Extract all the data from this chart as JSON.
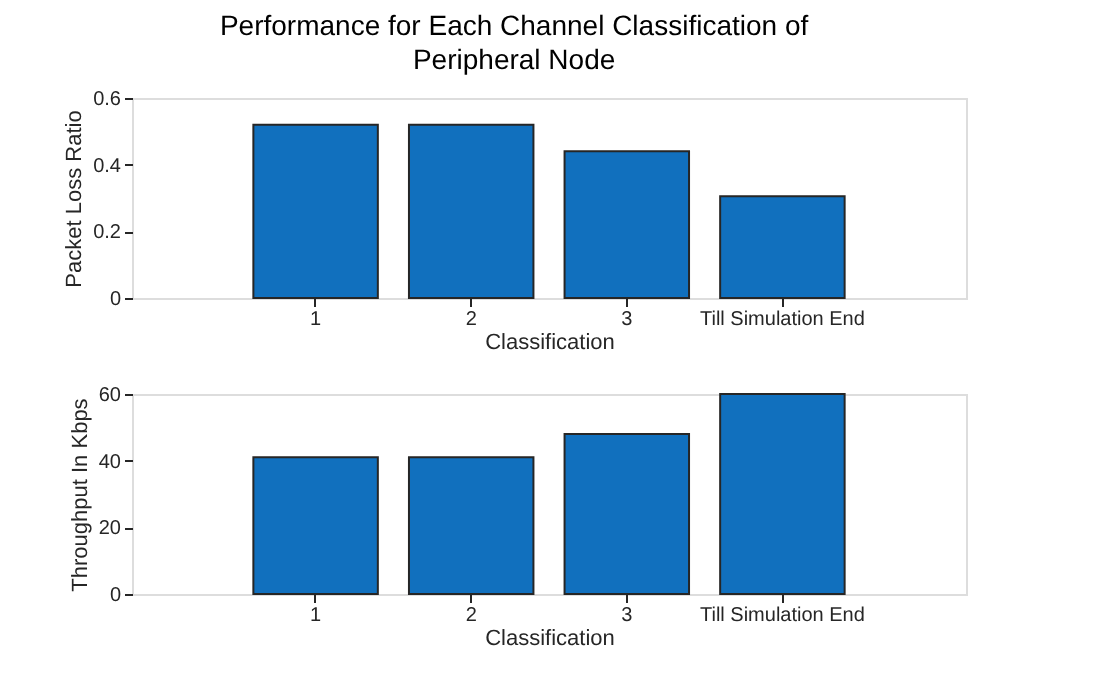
{
  "chart_data": [
    {
      "type": "bar",
      "title": "Performance for Each Channel Classification of Peripheral Node",
      "xlabel": "Classification",
      "ylabel": "Packet Loss Ratio",
      "categories": [
        "1",
        "2",
        "3",
        "Till Simulation End"
      ],
      "values": [
        0.52,
        0.52,
        0.44,
        0.305
      ],
      "color": "#1170be",
      "ylim": [
        0,
        0.6
      ],
      "yticks": [
        0,
        0.2,
        0.4,
        0.6
      ],
      "grid": false
    },
    {
      "type": "bar",
      "xlabel": "Classification",
      "ylabel": "Throughput In Kbps",
      "categories": [
        "1",
        "2",
        "3",
        "Till Simulation End"
      ],
      "values": [
        41,
        41,
        48,
        60
      ],
      "color": "#1170be",
      "ylim": [
        0,
        60
      ],
      "yticks": [
        0,
        20,
        40,
        60
      ],
      "grid": false
    }
  ]
}
